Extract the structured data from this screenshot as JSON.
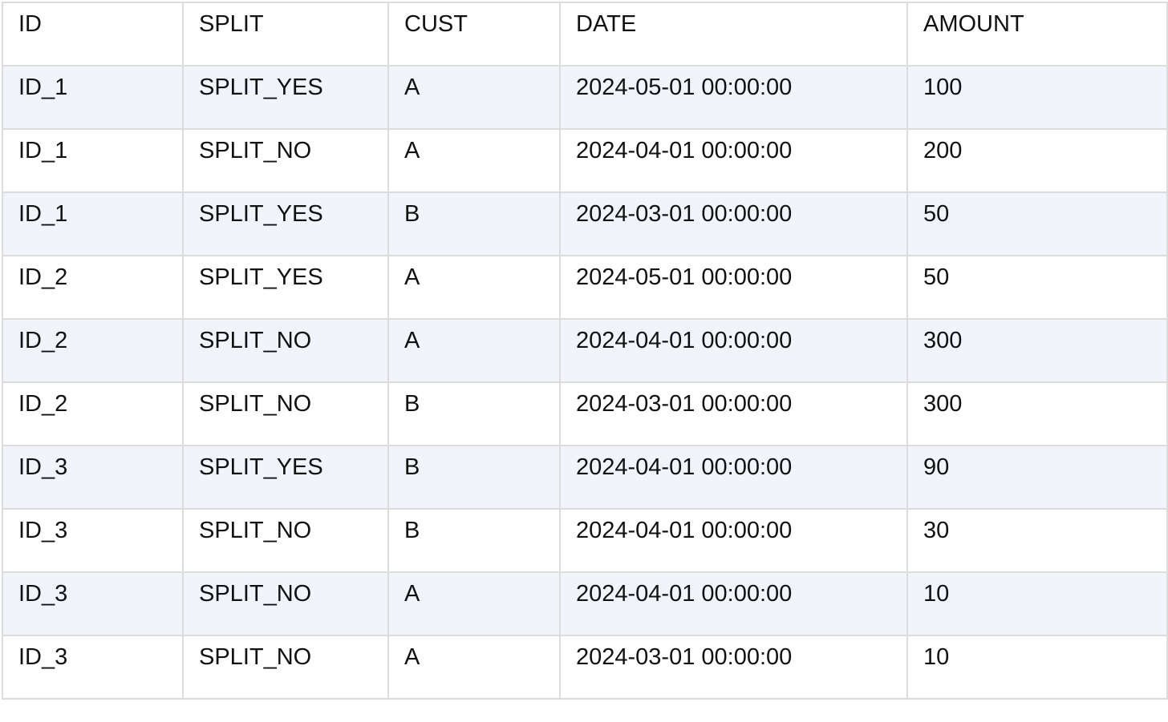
{
  "table": {
    "headers": [
      "ID",
      "SPLIT",
      "CUST",
      "DATE",
      "AMOUNT"
    ],
    "rows": [
      [
        "ID_1",
        "SPLIT_YES",
        "A",
        "2024-05-01 00:00:00",
        "100"
      ],
      [
        "ID_1",
        "SPLIT_NO",
        "A",
        "2024-04-01 00:00:00",
        "200"
      ],
      [
        "ID_1",
        "SPLIT_YES",
        "B",
        "2024-03-01 00:00:00",
        "50"
      ],
      [
        "ID_2",
        "SPLIT_YES",
        "A",
        "2024-05-01 00:00:00",
        "50"
      ],
      [
        "ID_2",
        "SPLIT_NO",
        "A",
        "2024-04-01 00:00:00",
        "300"
      ],
      [
        "ID_2",
        "SPLIT_NO",
        "B",
        "2024-03-01 00:00:00",
        "300"
      ],
      [
        "ID_3",
        "SPLIT_YES",
        "B",
        "2024-04-01 00:00:00",
        "90"
      ],
      [
        "ID_3",
        "SPLIT_NO",
        "B",
        "2024-04-01 00:00:00",
        "30"
      ],
      [
        "ID_3",
        "SPLIT_NO",
        "A",
        "2024-04-01 00:00:00",
        "10"
      ],
      [
        "ID_3",
        "SPLIT_NO",
        "A",
        "2024-03-01 00:00:00",
        "10"
      ]
    ]
  },
  "colors": {
    "stripe": "#f1f5fb",
    "border": "#dcdcdc",
    "text": "#111111"
  }
}
